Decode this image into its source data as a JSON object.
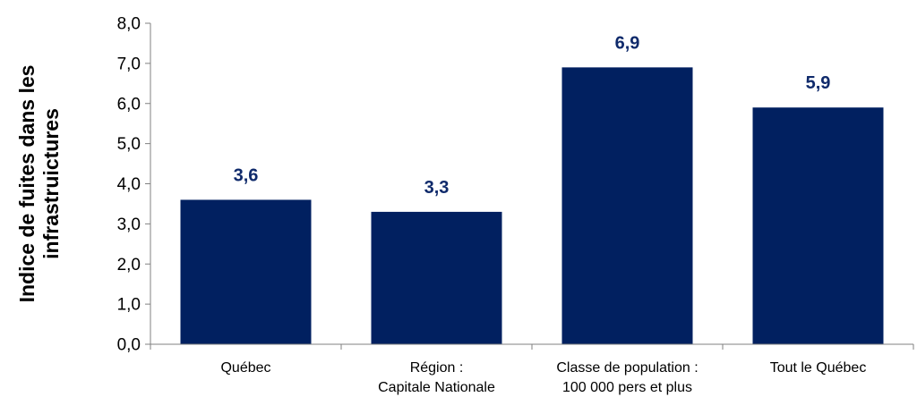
{
  "chart_data": {
    "type": "bar",
    "title": "",
    "xlabel": "",
    "ylabel": [
      "Indice de fuites dans les",
      "infrastruictures"
    ],
    "categories": [
      [
        "Québec"
      ],
      [
        "Région :",
        "Capitale Nationale"
      ],
      [
        "Classe de population :",
        "100 000 pers et plus"
      ],
      [
        "Tout le Québec"
      ]
    ],
    "values": [
      3.6,
      3.3,
      6.9,
      5.9
    ],
    "value_labels": [
      "3,6",
      "3,3",
      "6,9",
      "5,9"
    ],
    "ylim": [
      0,
      8
    ],
    "yticks": [
      0,
      1,
      2,
      3,
      4,
      5,
      6,
      7,
      8
    ],
    "ytick_labels": [
      "0,0",
      "1,0",
      "2,0",
      "3,0",
      "4,0",
      "5,0",
      "6,0",
      "7,0",
      "8,0"
    ],
    "grid": false,
    "legend": "none",
    "colors": {
      "bar": "#012060",
      "value_label": "#0f2a6b",
      "axis": "#808080"
    }
  }
}
